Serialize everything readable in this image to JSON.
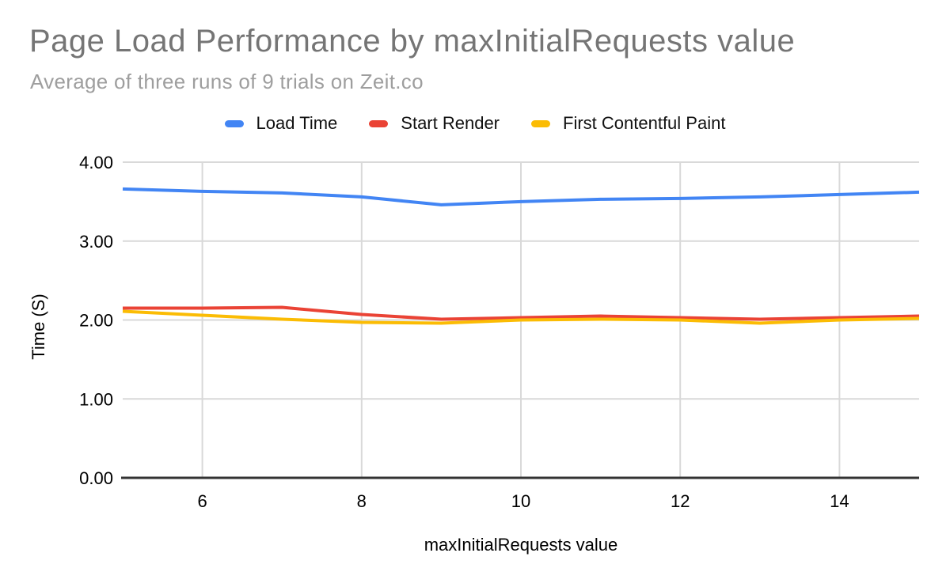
{
  "chart": {
    "title": "Page Load Performance by maxInitialRequests value",
    "subtitle": "Average of three runs of 9 trials on Zeit.co"
  },
  "chart_data": {
    "type": "line",
    "title": "Page Load Performance by maxInitialRequests value",
    "subtitle": "Average of three runs of 9 trials on Zeit.co",
    "xlabel": "maxInitialRequests value",
    "ylabel": "Time (S)",
    "x": [
      5,
      6,
      7,
      8,
      9,
      10,
      11,
      12,
      13,
      14,
      15
    ],
    "series": [
      {
        "name": "Load Time",
        "color": "#4285F4",
        "values": [
          3.66,
          3.63,
          3.61,
          3.56,
          3.46,
          3.5,
          3.53,
          3.54,
          3.56,
          3.59,
          3.62
        ]
      },
      {
        "name": "Start Render",
        "color": "#EA4335",
        "values": [
          2.15,
          2.15,
          2.16,
          2.07,
          2.01,
          2.03,
          2.05,
          2.03,
          2.01,
          2.03,
          2.05
        ]
      },
      {
        "name": "First Contentful Paint",
        "color": "#FBBC04",
        "values": [
          2.11,
          2.06,
          2.01,
          1.97,
          1.96,
          2.0,
          2.01,
          2.0,
          1.96,
          2.0,
          2.02
        ]
      }
    ],
    "xlim": [
      5,
      15
    ],
    "ylim": [
      0,
      4
    ],
    "xticks": [
      6,
      8,
      10,
      12,
      14
    ],
    "yticks": [
      0,
      1,
      2,
      3,
      4
    ],
    "ytick_decimals": 2,
    "grid": true,
    "legend_position": "top",
    "colors": {
      "grid": "#d9d9d9",
      "axis": "#333333",
      "tick_text": "#000000",
      "title": "#757575",
      "subtitle": "#9e9e9e"
    }
  }
}
